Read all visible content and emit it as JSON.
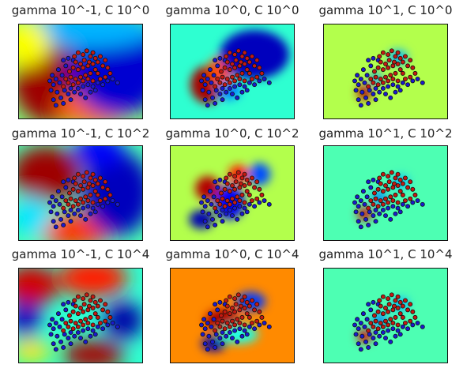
{
  "figure": {
    "description_free": true
  },
  "chart_data": [
    {
      "type": "heatmap",
      "title": "gamma 10^-1, C 10^0",
      "gamma_exponent": -1,
      "C_exponent": 0,
      "colormap": "jet",
      "background_level": 0.5,
      "blobs": [
        {
          "cx": 0.27,
          "cy": 0.6,
          "rx": 0.32,
          "ry": 0.46,
          "level": 0.97
        },
        {
          "cx": 0.6,
          "cy": 0.88,
          "rx": 0.3,
          "ry": 0.2,
          "level": 0.78
        },
        {
          "cx": 0.8,
          "cy": 0.42,
          "rx": 0.4,
          "ry": 0.55,
          "level": 0.08
        },
        {
          "cx": 0.55,
          "cy": 0.05,
          "rx": 0.55,
          "ry": 0.2,
          "level": 0.3
        },
        {
          "cx": 0.05,
          "cy": 0.2,
          "rx": 0.2,
          "ry": 0.25,
          "level": 0.62
        }
      ]
    },
    {
      "type": "heatmap",
      "title": "gamma 10^0, C 10^0",
      "gamma_exponent": 0,
      "C_exponent": 0,
      "colormap": "jet",
      "background_level": 0.42,
      "blobs": [
        {
          "cx": 0.3,
          "cy": 0.64,
          "rx": 0.14,
          "ry": 0.2,
          "level": 0.96
        },
        {
          "cx": 0.4,
          "cy": 0.5,
          "rx": 0.1,
          "ry": 0.16,
          "level": 0.8
        },
        {
          "cx": 0.68,
          "cy": 0.32,
          "rx": 0.28,
          "ry": 0.26,
          "level": 0.06
        },
        {
          "cx": 0.47,
          "cy": 0.7,
          "rx": 0.1,
          "ry": 0.1,
          "level": 0.25
        }
      ]
    },
    {
      "type": "heatmap",
      "title": "gamma 10^1, C 10^0",
      "gamma_exponent": 1,
      "C_exponent": 0,
      "colormap": "jet",
      "background_level": 0.55,
      "blobs": [
        {
          "cx": 0.33,
          "cy": 0.72,
          "rx": 0.06,
          "ry": 0.08,
          "level": 0.95
        },
        {
          "cx": 0.42,
          "cy": 0.58,
          "rx": 0.05,
          "ry": 0.07,
          "level": 0.28
        },
        {
          "cx": 0.6,
          "cy": 0.35,
          "rx": 0.08,
          "ry": 0.08,
          "level": 0.3
        }
      ]
    },
    {
      "type": "heatmap",
      "title": "gamma 10^-1, C 10^2",
      "gamma_exponent": -1,
      "C_exponent": 2,
      "colormap": "jet",
      "background_level": 0.45,
      "blobs": [
        {
          "cx": 0.22,
          "cy": 0.3,
          "rx": 0.28,
          "ry": 0.3,
          "level": 0.97
        },
        {
          "cx": 0.45,
          "cy": 0.9,
          "rx": 0.3,
          "ry": 0.18,
          "level": 0.82
        },
        {
          "cx": 0.8,
          "cy": 0.5,
          "rx": 0.28,
          "ry": 0.45,
          "level": 0.06
        },
        {
          "cx": 0.65,
          "cy": 0.05,
          "rx": 0.2,
          "ry": 0.18,
          "level": 0.12
        },
        {
          "cx": 0.1,
          "cy": 0.75,
          "rx": 0.16,
          "ry": 0.22,
          "level": 0.35
        }
      ]
    },
    {
      "type": "heatmap",
      "title": "gamma 10^0, C 10^2",
      "gamma_exponent": 0,
      "C_exponent": 2,
      "colormap": "jet",
      "background_level": 0.55,
      "blobs": [
        {
          "cx": 0.3,
          "cy": 0.45,
          "rx": 0.1,
          "ry": 0.13,
          "level": 0.95
        },
        {
          "cx": 0.25,
          "cy": 0.78,
          "rx": 0.1,
          "ry": 0.1,
          "level": 0.05
        },
        {
          "cx": 0.48,
          "cy": 0.6,
          "rx": 0.12,
          "ry": 0.18,
          "level": 0.12
        },
        {
          "cx": 0.72,
          "cy": 0.3,
          "rx": 0.09,
          "ry": 0.12,
          "level": 0.2
        },
        {
          "cx": 0.55,
          "cy": 0.3,
          "rx": 0.08,
          "ry": 0.1,
          "level": 0.85
        }
      ]
    },
    {
      "type": "heatmap",
      "title": "gamma 10^1, C 10^2",
      "gamma_exponent": 1,
      "C_exponent": 2,
      "colormap": "jet",
      "background_level": 0.45,
      "blobs": [
        {
          "cx": 0.33,
          "cy": 0.72,
          "rx": 0.06,
          "ry": 0.07,
          "level": 0.9
        },
        {
          "cx": 0.45,
          "cy": 0.55,
          "rx": 0.06,
          "ry": 0.07,
          "level": 0.25
        },
        {
          "cx": 0.62,
          "cy": 0.38,
          "rx": 0.07,
          "ry": 0.07,
          "level": 0.3
        }
      ]
    },
    {
      "type": "heatmap",
      "title": "gamma 10^-1, C 10^4",
      "gamma_exponent": -1,
      "C_exponent": 4,
      "colormap": "jet",
      "background_level": 0.42,
      "blobs": [
        {
          "cx": 0.1,
          "cy": 0.18,
          "rx": 0.22,
          "ry": 0.22,
          "level": 0.92
        },
        {
          "cx": 0.6,
          "cy": 0.1,
          "rx": 0.28,
          "ry": 0.2,
          "level": 0.85
        },
        {
          "cx": 0.6,
          "cy": 0.92,
          "rx": 0.25,
          "ry": 0.15,
          "level": 0.96
        },
        {
          "cx": 0.85,
          "cy": 0.55,
          "rx": 0.16,
          "ry": 0.2,
          "level": 0.04
        },
        {
          "cx": 0.05,
          "cy": 0.55,
          "rx": 0.12,
          "ry": 0.2,
          "level": 0.06
        },
        {
          "cx": 0.1,
          "cy": 0.88,
          "rx": 0.16,
          "ry": 0.12,
          "level": 0.65
        }
      ]
    },
    {
      "type": "heatmap",
      "title": "gamma 10^0, C 10^4",
      "gamma_exponent": 0,
      "C_exponent": 4,
      "colormap": "jet",
      "background_level": 0.74,
      "blobs": [
        {
          "cx": 0.42,
          "cy": 0.55,
          "rx": 0.14,
          "ry": 0.12,
          "level": 0.96
        },
        {
          "cx": 0.35,
          "cy": 0.8,
          "rx": 0.1,
          "ry": 0.08,
          "level": 0.05
        },
        {
          "cx": 0.65,
          "cy": 0.35,
          "rx": 0.12,
          "ry": 0.1,
          "level": 0.18
        },
        {
          "cx": 0.55,
          "cy": 0.7,
          "rx": 0.16,
          "ry": 0.1,
          "level": 0.4
        }
      ]
    },
    {
      "type": "heatmap",
      "title": "gamma 10^1, C 10^4",
      "gamma_exponent": 1,
      "C_exponent": 4,
      "colormap": "jet",
      "background_level": 0.45,
      "blobs": [
        {
          "cx": 0.33,
          "cy": 0.72,
          "rx": 0.06,
          "ry": 0.07,
          "level": 0.9
        },
        {
          "cx": 0.45,
          "cy": 0.55,
          "rx": 0.06,
          "ry": 0.07,
          "level": 0.25
        },
        {
          "cx": 0.62,
          "cy": 0.38,
          "rx": 0.07,
          "ry": 0.07,
          "level": 0.3
        }
      ]
    }
  ],
  "points": {
    "red_color": "#c41a12",
    "blue_color": "#1a1ad0",
    "edge_color": "#111111",
    "red": [
      [
        0.48,
        0.3
      ],
      [
        0.52,
        0.32
      ],
      [
        0.55,
        0.28
      ],
      [
        0.58,
        0.34
      ],
      [
        0.6,
        0.3
      ],
      [
        0.62,
        0.36
      ],
      [
        0.57,
        0.4
      ],
      [
        0.53,
        0.38
      ],
      [
        0.5,
        0.42
      ],
      [
        0.46,
        0.4
      ],
      [
        0.44,
        0.46
      ],
      [
        0.48,
        0.48
      ],
      [
        0.52,
        0.46
      ],
      [
        0.56,
        0.44
      ],
      [
        0.6,
        0.42
      ],
      [
        0.64,
        0.4
      ],
      [
        0.66,
        0.34
      ],
      [
        0.68,
        0.44
      ],
      [
        0.7,
        0.38
      ],
      [
        0.62,
        0.48
      ],
      [
        0.58,
        0.52
      ],
      [
        0.54,
        0.54
      ],
      [
        0.5,
        0.56
      ],
      [
        0.46,
        0.58
      ],
      [
        0.42,
        0.56
      ],
      [
        0.4,
        0.62
      ],
      [
        0.44,
        0.64
      ],
      [
        0.48,
        0.62
      ],
      [
        0.52,
        0.6
      ],
      [
        0.56,
        0.58
      ],
      [
        0.64,
        0.52
      ],
      [
        0.72,
        0.46
      ],
      [
        0.74,
        0.52
      ],
      [
        0.45,
        0.34
      ],
      [
        0.41,
        0.5
      ],
      [
        0.38,
        0.58
      ],
      [
        0.66,
        0.58
      ],
      [
        0.7,
        0.56
      ],
      [
        0.6,
        0.6
      ],
      [
        0.36,
        0.66
      ]
    ],
    "blue": [
      [
        0.32,
        0.48
      ],
      [
        0.35,
        0.54
      ],
      [
        0.3,
        0.58
      ],
      [
        0.28,
        0.64
      ],
      [
        0.33,
        0.62
      ],
      [
        0.37,
        0.7
      ],
      [
        0.31,
        0.72
      ],
      [
        0.28,
        0.8
      ],
      [
        0.34,
        0.78
      ],
      [
        0.4,
        0.74
      ],
      [
        0.42,
        0.68
      ],
      [
        0.38,
        0.44
      ],
      [
        0.36,
        0.38
      ],
      [
        0.4,
        0.36
      ],
      [
        0.44,
        0.38
      ],
      [
        0.26,
        0.7
      ],
      [
        0.3,
        0.86
      ],
      [
        0.45,
        0.72
      ],
      [
        0.48,
        0.68
      ],
      [
        0.52,
        0.66
      ],
      [
        0.56,
        0.64
      ],
      [
        0.6,
        0.66
      ],
      [
        0.64,
        0.62
      ],
      [
        0.68,
        0.64
      ],
      [
        0.62,
        0.7
      ],
      [
        0.58,
        0.72
      ],
      [
        0.5,
        0.74
      ],
      [
        0.36,
        0.84
      ],
      [
        0.42,
        0.8
      ],
      [
        0.54,
        0.78
      ],
      [
        0.72,
        0.6
      ],
      [
        0.76,
        0.58
      ],
      [
        0.8,
        0.62
      ],
      [
        0.27,
        0.54
      ],
      [
        0.25,
        0.6
      ]
    ]
  }
}
